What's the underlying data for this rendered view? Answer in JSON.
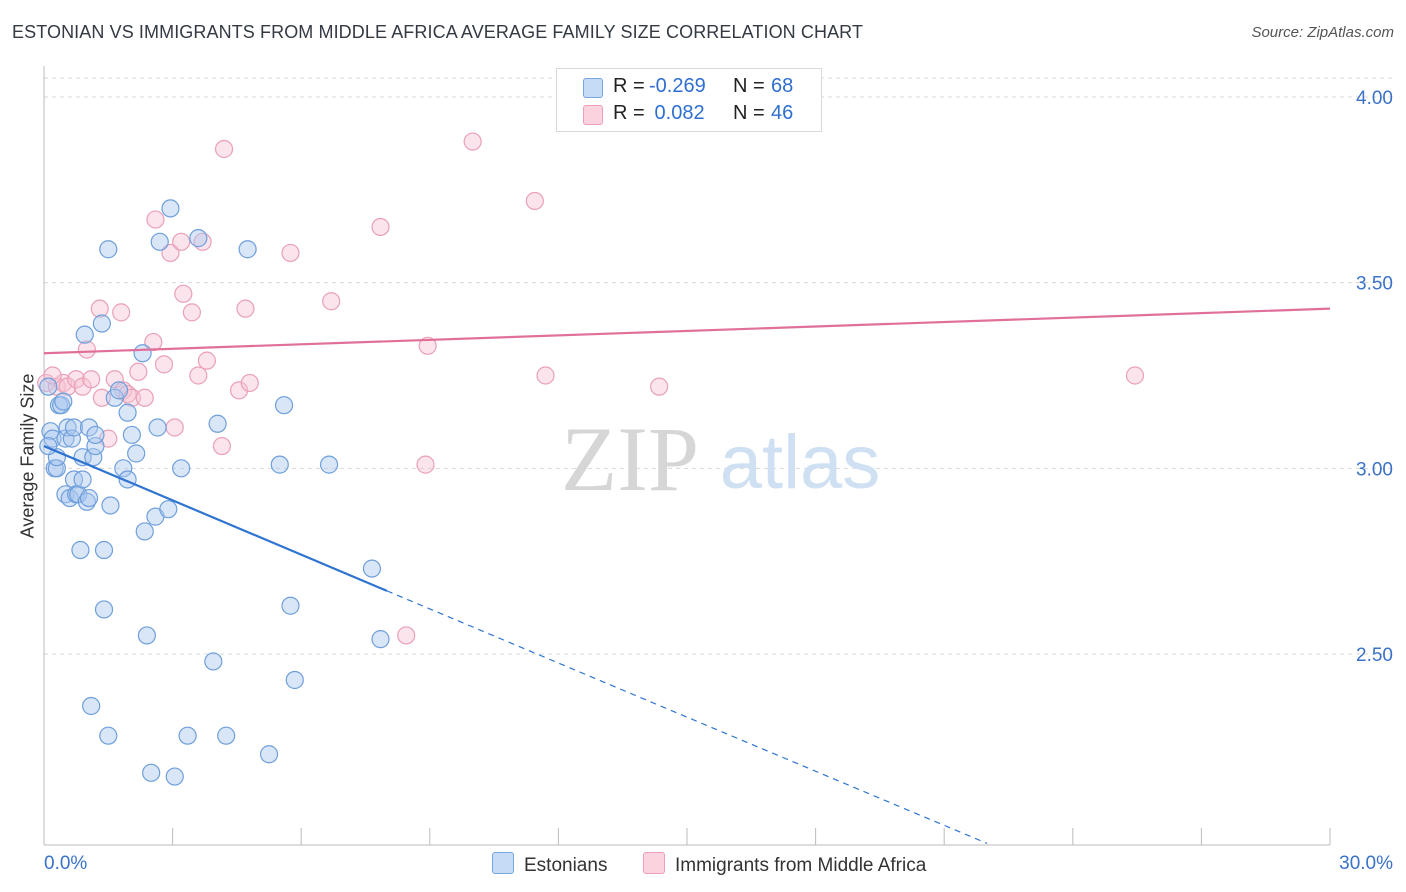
{
  "title": "ESTONIAN VS IMMIGRANTS FROM MIDDLE AFRICA AVERAGE FAMILY SIZE CORRELATION CHART",
  "source": "Source: ZipAtlas.com",
  "watermark": {
    "zip": "ZIP",
    "atlas": "atlas"
  },
  "colors": {
    "blue_fill": "#aac8f0",
    "blue_stroke": "#6f9fdb",
    "blue_line": "#2f74d0",
    "pink_fill": "#f6c4d3",
    "pink_stroke": "#e9a0b8",
    "pink_line": "#e0709a",
    "axis_text": "#3a72c8",
    "grid": "#d8d8d8"
  },
  "legend": {
    "r_label": "R =",
    "n_label": "N =",
    "rows": [
      {
        "series": "Estonians",
        "r": "-0.269",
        "n": "68"
      },
      {
        "series": "Immigrants from Middle Africa",
        "r": " 0.082",
        "n": "46"
      }
    ]
  },
  "chart_data": {
    "type": "scatter",
    "title": "ESTONIAN VS IMMIGRANTS FROM MIDDLE AFRICA AVERAGE FAMILY SIZE CORRELATION CHART",
    "xlabel": "",
    "ylabel": "Average Family Size",
    "xlim": [
      0,
      30
    ],
    "ylim": [
      2.03,
      4.05
    ],
    "x_tick_labels": [
      "0.0%",
      "30.0%"
    ],
    "y_ticks": [
      2.5,
      3.0,
      3.5,
      4.0
    ],
    "y_tick_labels": [
      "2.50",
      "3.00",
      "3.50",
      "4.00"
    ],
    "grid": true,
    "series": [
      {
        "name": "Estonians",
        "trend": {
          "x0": 0,
          "y0": 3.06,
          "x1": 8.0,
          "y1": 2.67,
          "dash_to_x": 22.0,
          "dash_to_y": 1.99
        },
        "points": [
          [
            0.1,
            3.22
          ],
          [
            0.15,
            3.1
          ],
          [
            0.2,
            3.08
          ],
          [
            0.25,
            3.0
          ],
          [
            0.3,
            3.0
          ],
          [
            0.3,
            3.03
          ],
          [
            0.35,
            3.17
          ],
          [
            0.4,
            3.17
          ],
          [
            0.45,
            3.18
          ],
          [
            0.5,
            3.08
          ],
          [
            0.5,
            2.93
          ],
          [
            0.55,
            3.11
          ],
          [
            0.6,
            2.92
          ],
          [
            0.65,
            3.08
          ],
          [
            0.7,
            2.97
          ],
          [
            0.7,
            3.11
          ],
          [
            0.75,
            2.93
          ],
          [
            0.8,
            2.93
          ],
          [
            0.85,
            2.78
          ],
          [
            0.9,
            3.03
          ],
          [
            0.9,
            2.97
          ],
          [
            0.95,
            3.36
          ],
          [
            1.0,
            2.91
          ],
          [
            1.05,
            2.92
          ],
          [
            1.05,
            3.11
          ],
          [
            1.1,
            2.36
          ],
          [
            1.15,
            3.03
          ],
          [
            1.2,
            3.06
          ],
          [
            1.2,
            3.09
          ],
          [
            1.35,
            3.39
          ],
          [
            1.4,
            2.78
          ],
          [
            1.4,
            2.62
          ],
          [
            1.5,
            3.59
          ],
          [
            1.5,
            2.28
          ],
          [
            1.55,
            2.9
          ],
          [
            1.65,
            3.19
          ],
          [
            1.75,
            3.21
          ],
          [
            1.85,
            3.0
          ],
          [
            1.95,
            3.15
          ],
          [
            1.95,
            2.97
          ],
          [
            2.05,
            3.09
          ],
          [
            2.15,
            3.04
          ],
          [
            2.3,
            3.31
          ],
          [
            2.35,
            2.83
          ],
          [
            2.4,
            2.55
          ],
          [
            2.5,
            2.18
          ],
          [
            2.6,
            2.87
          ],
          [
            2.65,
            3.11
          ],
          [
            2.7,
            3.61
          ],
          [
            2.9,
            2.89
          ],
          [
            2.95,
            3.7
          ],
          [
            3.05,
            2.17
          ],
          [
            3.2,
            3.0
          ],
          [
            3.35,
            2.28
          ],
          [
            3.6,
            3.62
          ],
          [
            3.95,
            2.48
          ],
          [
            4.05,
            3.12
          ],
          [
            4.25,
            2.28
          ],
          [
            4.75,
            3.59
          ],
          [
            5.25,
            2.23
          ],
          [
            5.5,
            3.01
          ],
          [
            5.6,
            3.17
          ],
          [
            5.75,
            2.63
          ],
          [
            5.85,
            2.43
          ],
          [
            6.65,
            3.01
          ],
          [
            7.65,
            2.73
          ],
          [
            7.85,
            2.54
          ],
          [
            0.1,
            3.06
          ]
        ]
      },
      {
        "name": "Immigrants from Middle Africa",
        "trend": {
          "x0": 0,
          "y0": 3.31,
          "x1": 30,
          "y1": 3.43
        },
        "points": [
          [
            0.05,
            3.23
          ],
          [
            0.3,
            3.22
          ],
          [
            0.45,
            3.23
          ],
          [
            0.55,
            3.22
          ],
          [
            0.75,
            3.24
          ],
          [
            0.9,
            3.22
          ],
          [
            1.0,
            3.32
          ],
          [
            1.1,
            3.24
          ],
          [
            1.3,
            3.43
          ],
          [
            1.35,
            3.19
          ],
          [
            1.5,
            3.08
          ],
          [
            1.65,
            3.24
          ],
          [
            1.8,
            3.42
          ],
          [
            1.85,
            3.21
          ],
          [
            1.95,
            3.2
          ],
          [
            2.05,
            3.19
          ],
          [
            2.2,
            3.26
          ],
          [
            2.35,
            3.19
          ],
          [
            2.55,
            3.34
          ],
          [
            2.6,
            3.67
          ],
          [
            2.8,
            3.28
          ],
          [
            2.95,
            3.58
          ],
          [
            3.05,
            3.11
          ],
          [
            3.2,
            3.61
          ],
          [
            3.25,
            3.47
          ],
          [
            3.45,
            3.42
          ],
          [
            3.6,
            3.25
          ],
          [
            3.7,
            3.61
          ],
          [
            3.8,
            3.29
          ],
          [
            4.15,
            3.06
          ],
          [
            4.2,
            3.86
          ],
          [
            4.55,
            3.21
          ],
          [
            4.7,
            3.43
          ],
          [
            4.8,
            3.23
          ],
          [
            5.75,
            3.58
          ],
          [
            6.7,
            3.45
          ],
          [
            7.85,
            3.65
          ],
          [
            8.45,
            2.55
          ],
          [
            8.9,
            3.01
          ],
          [
            8.95,
            3.33
          ],
          [
            10.0,
            3.88
          ],
          [
            11.45,
            3.72
          ],
          [
            11.7,
            3.25
          ],
          [
            14.35,
            3.22
          ],
          [
            25.45,
            3.25
          ],
          [
            0.2,
            3.25
          ]
        ]
      }
    ]
  }
}
